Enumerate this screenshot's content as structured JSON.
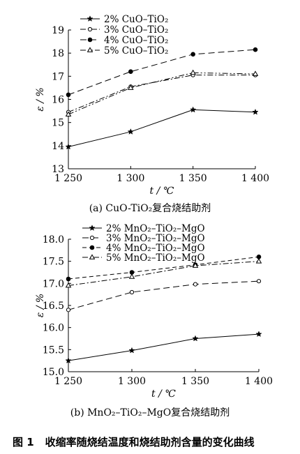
{
  "chart_data": [
    {
      "type": "line",
      "xlabel": "t / ℃",
      "ylabel": "ε / %",
      "x": [
        1250,
        1300,
        1350,
        1400
      ],
      "x_tick_labels": [
        "1 250",
        "1 300",
        "1 350",
        "1 400"
      ],
      "ylim": [
        13,
        19
      ],
      "y_ticks": [
        13,
        14,
        15,
        16,
        17,
        18,
        19
      ],
      "y_tick_labels": [
        "13",
        "14",
        "15",
        "16",
        "17",
        "18",
        "19"
      ],
      "legend_position": "top-left",
      "grid": false,
      "caption": "(a)  CuO-TiO₂复合烧结助剂",
      "series": [
        {
          "name": "2% CuO–TiO₂",
          "marker": "star",
          "dash": "solid",
          "values": [
            13.95,
            14.6,
            15.55,
            15.45
          ]
        },
        {
          "name": "3% CuO–TiO₂",
          "marker": "open-circle",
          "dash": "dashdot",
          "values": [
            15.45,
            16.55,
            17.05,
            17.05
          ]
        },
        {
          "name": "4% CuO–TiO₂",
          "marker": "filled-circle",
          "dash": "longdash",
          "values": [
            16.2,
            17.2,
            17.95,
            18.15
          ]
        },
        {
          "name": "5% CuO–TiO₂",
          "marker": "open-triangle",
          "dash": "dashdotdot",
          "values": [
            15.35,
            16.5,
            17.15,
            17.1
          ]
        }
      ]
    },
    {
      "type": "line",
      "xlabel": "t / ℃",
      "ylabel": "ε / %",
      "x": [
        1250,
        1300,
        1350,
        1400
      ],
      "x_tick_labels": [
        "1 250",
        "1 300",
        "1 350",
        "1 400"
      ],
      "ylim": [
        15.0,
        18.0
      ],
      "y_ticks": [
        15.0,
        15.5,
        16.0,
        16.5,
        17.0,
        17.5,
        18.0
      ],
      "y_tick_labels": [
        "15.0",
        "15.5",
        "16.0",
        "16.5",
        "17.0",
        "17.5",
        "18.0"
      ],
      "legend_position": "top-left",
      "grid": false,
      "caption": "(b)  MnO₂–TiO₂–MgO复合烧结助剂",
      "series": [
        {
          "name": "2% MnO₂–TiO₂–MgO",
          "marker": "star",
          "dash": "solid",
          "values": [
            15.25,
            15.48,
            15.75,
            15.85
          ]
        },
        {
          "name": "3% MnO₂–TiO₂–MgO",
          "marker": "open-circle",
          "dash": "longdash",
          "values": [
            16.4,
            16.8,
            16.98,
            17.05
          ]
        },
        {
          "name": "4% MnO₂–TiO₂–MgO",
          "marker": "filled-circle",
          "dash": "dash",
          "values": [
            17.1,
            17.25,
            17.42,
            17.6
          ]
        },
        {
          "name": "5% MnO₂–TiO₂–MgO",
          "marker": "open-triangle",
          "dash": "dashdot",
          "values": [
            16.95,
            17.15,
            17.4,
            17.5
          ]
        }
      ]
    }
  ],
  "figure_caption": {
    "number": "图 1",
    "text": "收缩率随烧结温度和烧结助剂含量的变化曲线"
  }
}
